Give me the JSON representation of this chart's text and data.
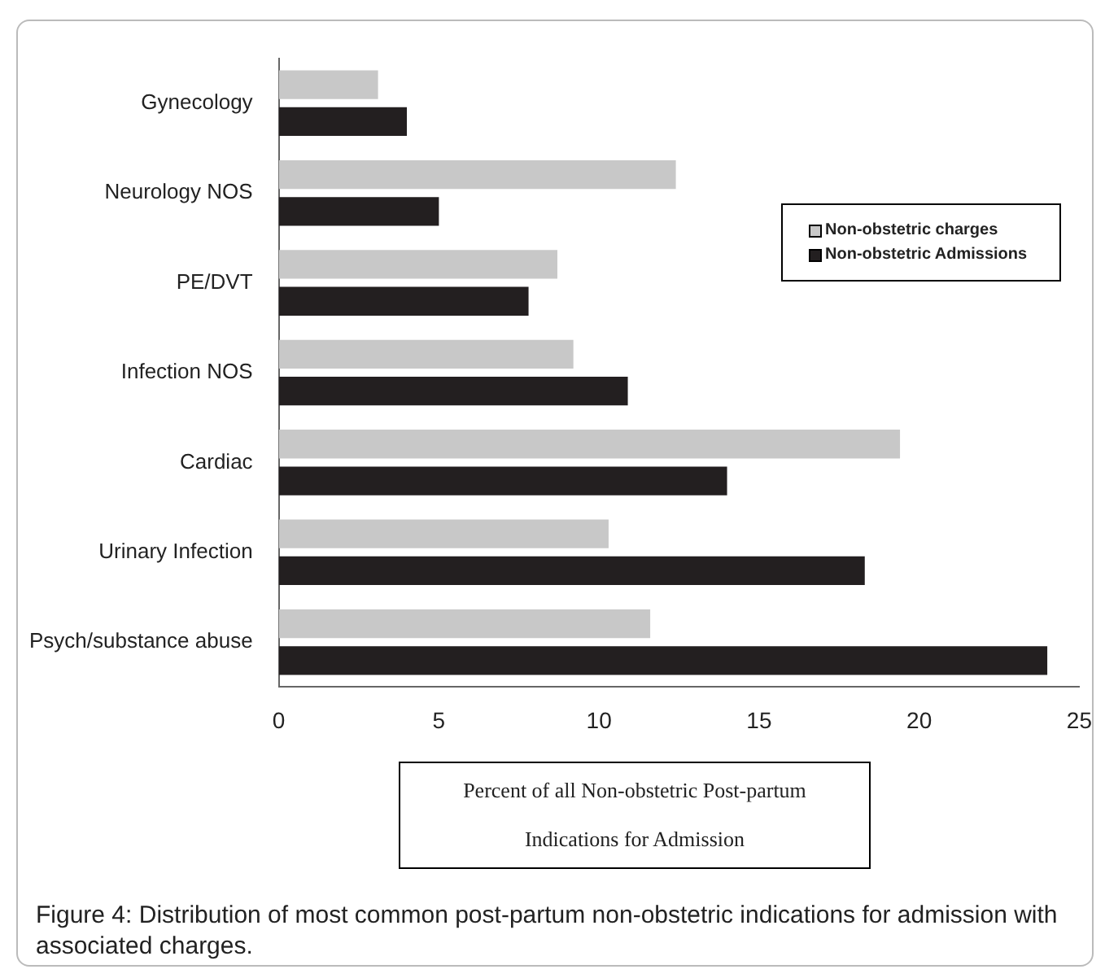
{
  "chart_data": {
    "type": "bar",
    "orientation": "horizontal",
    "xlabel": "Percent of all Non-obstetric Post-partum Indications for Admission",
    "categories": [
      "Gynecology",
      "Neurology NOS",
      "PE/DVT",
      "Infection NOS",
      "Cardiac",
      "Urinary Infection",
      "Psych/substance abuse"
    ],
    "series": [
      {
        "name": "Non-obstetric charges",
        "color": "#c8c8c8",
        "values": [
          3.1,
          12.4,
          8.7,
          9.2,
          19.4,
          10.3,
          11.6
        ]
      },
      {
        "name": "Non-obstetric Admissions",
        "color": "#231f20",
        "values": [
          4.0,
          5.0,
          7.8,
          10.9,
          14.0,
          18.3,
          24.0
        ]
      }
    ],
    "xlim": [
      0,
      25
    ],
    "xticks": [
      0,
      5,
      10,
      15,
      20,
      25
    ],
    "grid": false,
    "legend": "right",
    "annotations": [
      "Figure 4: Distribution of most common post-partum non-obstetric indications for admission with associated charges."
    ]
  }
}
